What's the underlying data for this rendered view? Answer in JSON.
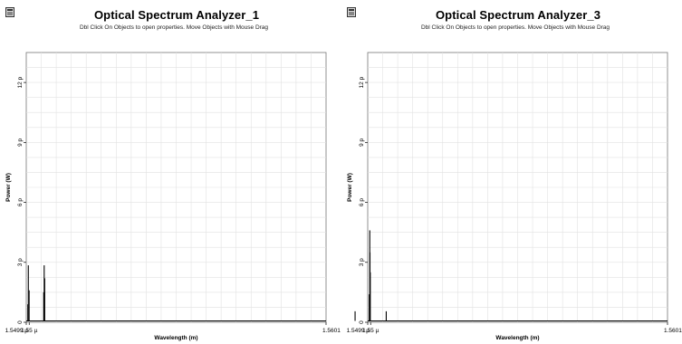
{
  "chart_data": [
    {
      "type": "line",
      "title": "Optical Spectrum Analyzer_1",
      "subtitle": "Dbl Click On Objects to open properties.  Move Objects with Mouse Drag",
      "xlabel": "Wavelength (m)",
      "ylabel": "Power (W)",
      "x_ticks": [
        {
          "value": 1.5499e-06,
          "label": "1.5499 µ"
        },
        {
          "value": 1.55e-06,
          "label": "1.55 µ"
        },
        {
          "value": 1.5601e-06,
          "label": "1.5601 µ"
        }
      ],
      "y_ticks": [
        {
          "value": 0,
          "label": "0"
        },
        {
          "value": 3e-12,
          "label": "3 p"
        },
        {
          "value": 6e-12,
          "label": "6 p"
        },
        {
          "value": 9e-12,
          "label": "9 p"
        },
        {
          "value": 1.2e-11,
          "label": "12 p"
        }
      ],
      "xlim": [
        1.5499e-06,
        1.5601e-06
      ],
      "ylim": [
        0,
        1.35e-11
      ],
      "grid": true,
      "line_color": "#000000",
      "series": [
        {
          "peaks": [
            {
              "x": 1.54997e-06,
              "y": 2.85e-12,
              "sub": [
                {
                  "dx": 3e-11,
                  "y": 1.6e-12
                },
                {
                  "dx": -2e-11,
                  "y": 9e-13
                }
              ]
            },
            {
              "x": 1.55051e-06,
              "y": 2.85e-12,
              "sub": [
                {
                  "dx": -2e-11,
                  "y": 1.5e-12
                },
                {
                  "dx": 2e-11,
                  "y": 2.2e-12
                }
              ]
            }
          ]
        }
      ]
    },
    {
      "type": "line",
      "title": "Optical Spectrum Analyzer_3",
      "subtitle": "Dbl Click On Objects to open properties.  Move Objects with Mouse Drag",
      "xlabel": "Wavelength (m)",
      "ylabel": "Power (W)",
      "x_ticks": [
        {
          "value": 1.5499e-06,
          "label": "1.5499 µ"
        },
        {
          "value": 1.55e-06,
          "label": "1.55 µ"
        },
        {
          "value": 1.5601e-06,
          "label": "1.5601 µ"
        }
      ],
      "y_ticks": [
        {
          "value": 0,
          "label": "0"
        },
        {
          "value": 3e-12,
          "label": "3 p"
        },
        {
          "value": 6e-12,
          "label": "6 p"
        },
        {
          "value": 9e-12,
          "label": "9 p"
        },
        {
          "value": 1.2e-11,
          "label": "12 p"
        }
      ],
      "xlim": [
        1.5499e-06,
        1.5601e-06
      ],
      "ylim": [
        0,
        1.35e-11
      ],
      "grid": true,
      "line_color": "#000000",
      "series": [
        {
          "peaks": [
            {
              "x": 1.54947e-06,
              "y": 5.5e-13,
              "sub": []
            },
            {
              "x": 1.54997e-06,
              "y": 4.6e-12,
              "sub": [
                {
                  "dx": 2e-11,
                  "y": 2.5e-12
                },
                {
                  "dx": -2e-11,
                  "y": 1.4e-12
                },
                {
                  "dx": 1e-11,
                  "y": 3.5e-12
                }
              ]
            },
            {
              "x": 1.55053e-06,
              "y": 5.5e-13,
              "sub": []
            }
          ]
        }
      ]
    }
  ]
}
